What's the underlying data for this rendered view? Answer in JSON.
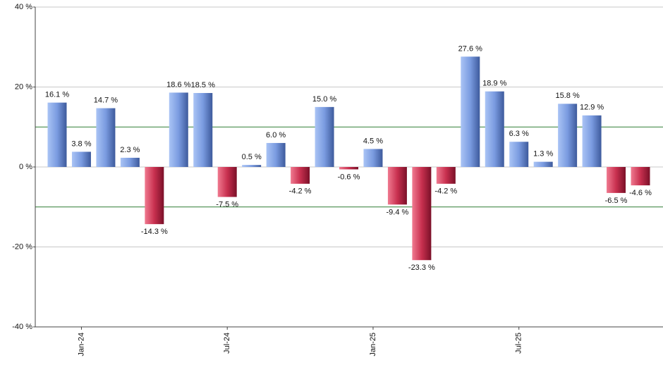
{
  "chart_data": {
    "type": "bar",
    "categories": [
      null,
      "Jan-24",
      null,
      null,
      null,
      null,
      null,
      "Jul-24",
      null,
      null,
      null,
      null,
      null,
      "Jan-25",
      null,
      null,
      null,
      null,
      null,
      "Jul-25",
      null,
      null,
      null,
      null,
      null
    ],
    "values": [
      16.1,
      3.8,
      14.7,
      2.3,
      -14.3,
      18.6,
      18.5,
      -7.5,
      0.5,
      6.0,
      -4.2,
      15.0,
      -0.6,
      4.5,
      -9.4,
      -23.3,
      -4.2,
      27.6,
      18.9,
      6.3,
      1.3,
      15.8,
      12.9,
      -6.5,
      -4.6
    ],
    "value_labels": [
      "16.1 %",
      "3.8 %",
      "14.7 %",
      "2.3 %",
      "-14.3 %",
      "18.6 %",
      "18.5 %",
      "-7.5 %",
      "0.5 %",
      "6.0 %",
      "-4.2 %",
      "15.0 %",
      "-0.6 %",
      "4.5 %",
      "-9.4 %",
      "-23.3 %",
      "-4.2 %",
      "27.6 %",
      "18.9 %",
      "6.3 %",
      "1.3 %",
      "15.8 %",
      "12.9 %",
      "-6.5 %",
      "-4.6 %"
    ],
    "positive_color": "#7a9be0",
    "negative_color": "#c8304f",
    "ylim": [
      -40,
      40
    ],
    "yticks": [
      {
        "value": -40,
        "label": "-40 %"
      },
      {
        "value": -20,
        "label": "-20 %"
      },
      {
        "value": 0,
        "label": "0 %"
      },
      {
        "value": 20,
        "label": "20 %"
      },
      {
        "value": 40,
        "label": "40 %"
      }
    ],
    "grid": true,
    "reference_lines": [
      10,
      -10
    ],
    "reference_color": "#2e7d32"
  }
}
